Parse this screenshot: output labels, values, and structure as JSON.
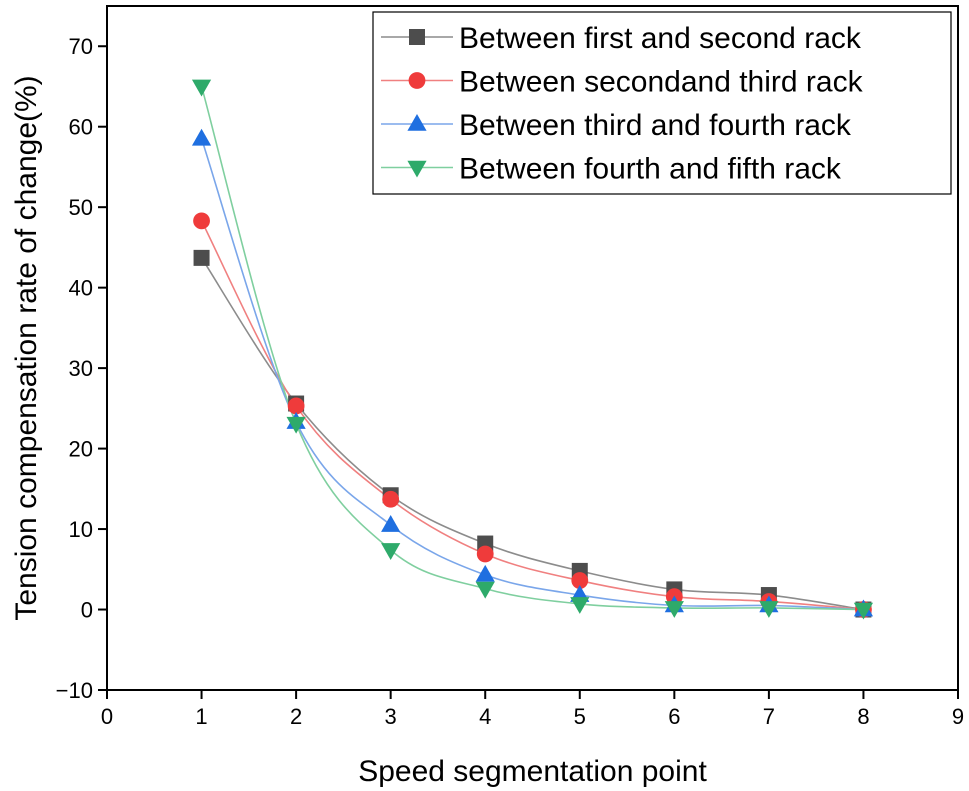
{
  "chart_data": {
    "type": "line",
    "title": "",
    "xlabel": "Speed segmentation point",
    "ylabel": "Tension compensation rate of change(%)",
    "xlim": [
      0,
      9
    ],
    "ylim": [
      -10,
      75
    ],
    "xticks": [
      0,
      1,
      2,
      3,
      4,
      5,
      6,
      7,
      8,
      9
    ],
    "yticks": [
      -10,
      0,
      10,
      20,
      30,
      40,
      50,
      60,
      70
    ],
    "x": [
      1,
      2,
      3,
      4,
      5,
      6,
      7,
      8
    ],
    "legend_position": "top-right",
    "grid": false,
    "series": [
      {
        "name": "Between first and second rack",
        "marker": "square",
        "color": "#4d4d4d",
        "line_color": "#8c8c8c",
        "values": [
          43.7,
          25.6,
          14.2,
          8.2,
          4.8,
          2.5,
          1.8,
          0
        ]
      },
      {
        "name": "Between secondand third rack",
        "marker": "circle",
        "color": "#ef3b3b",
        "line_color": "#f08080",
        "values": [
          48.3,
          25.3,
          13.7,
          6.9,
          3.6,
          1.6,
          1.0,
          0
        ]
      },
      {
        "name": "Between third and fourth rack",
        "marker": "triangle-up",
        "color": "#1f6fe0",
        "line_color": "#7aa6ea",
        "values": [
          58.5,
          23.3,
          10.5,
          4.3,
          1.8,
          0.5,
          0.5,
          0
        ]
      },
      {
        "name": "Between fourth and fifth rack",
        "marker": "triangle-down",
        "color": "#2eaa6a",
        "line_color": "#7fcf9f",
        "values": [
          65.0,
          23.1,
          7.4,
          2.6,
          0.7,
          0.2,
          0.2,
          0
        ]
      }
    ]
  }
}
